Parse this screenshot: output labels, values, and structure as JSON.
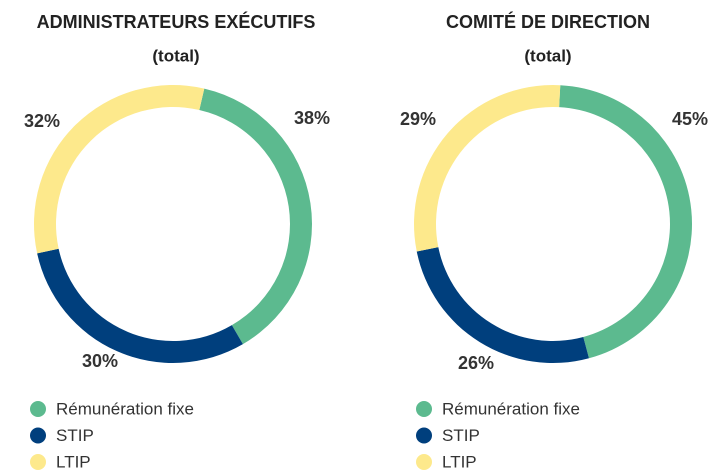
{
  "chart_data": [
    {
      "type": "pie",
      "title": "ADMINISTRATEURS EXÉCUTIFS",
      "subtitle": "(total)",
      "categories": [
        "Rémunération fixe",
        "STIP",
        "LTIP"
      ],
      "values": [
        38,
        30,
        32
      ],
      "value_labels": [
        "38%",
        "30%",
        "32%"
      ],
      "colors": [
        "#5cba8f",
        "#003f7d",
        "#fde98c"
      ]
    },
    {
      "type": "pie",
      "title": "COMITÉ DE DIRECTION",
      "subtitle": "(total)",
      "categories": [
        "Rémunération fixe",
        "STIP",
        "LTIP"
      ],
      "values": [
        45,
        26,
        29
      ],
      "value_labels": [
        "45%",
        "26%",
        "29%"
      ],
      "colors": [
        "#5cba8f",
        "#003f7d",
        "#fde98c"
      ]
    }
  ]
}
